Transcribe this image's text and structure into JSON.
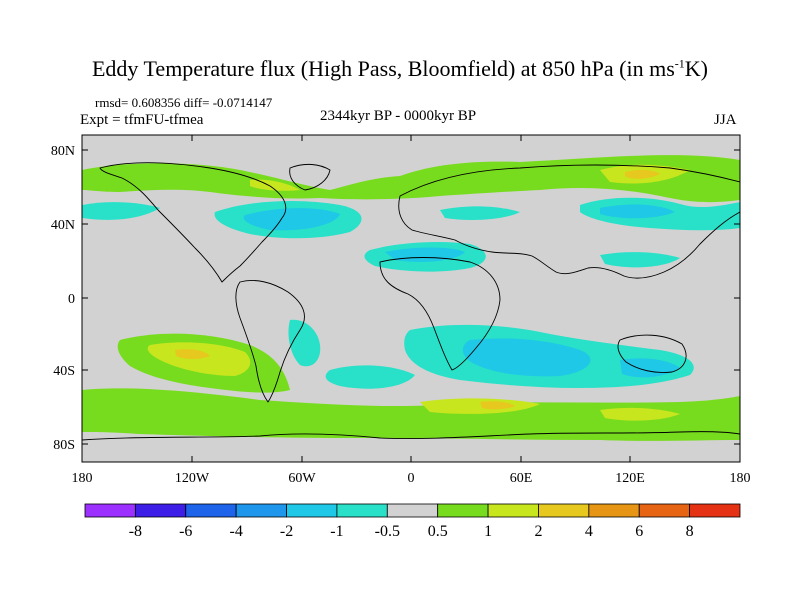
{
  "header": {
    "title_main": "Eddy Temperature flux (High Pass, Bloomfield) at 850 hPa (in ms",
    "title_sup": "-1",
    "title_end": "K)",
    "stats": "rmsd= 0.608356 diff= -0.0714147",
    "experiment": "Expt = tfmFU-tfmea",
    "period": "2344kyr BP - 0000kyr BP",
    "season": "JJA"
  },
  "axes": {
    "lat_labels": [
      "80N",
      "40N",
      "0",
      "40S",
      "80S"
    ],
    "lon_labels": [
      "180",
      "120W",
      "60W",
      "0",
      "60E",
      "120E",
      "180"
    ]
  },
  "colorbar": {
    "colors": [
      "#9b30ff",
      "#3c1ee6",
      "#1e64eb",
      "#1e96eb",
      "#1ec8e6",
      "#28e1c8",
      "#d2d2d2",
      "#78dc1e",
      "#c8e61e",
      "#e6c81e",
      "#e69614",
      "#e66414",
      "#e63214"
    ],
    "labels": [
      "-8",
      "-6",
      "-4",
      "-2",
      "-1",
      "-0.5",
      "0.5",
      "1",
      "2",
      "4",
      "6",
      "8"
    ]
  },
  "map_colors": {
    "background": "#d2d2d2",
    "cyan": "#28e1c8",
    "light_blue": "#1ec8e6",
    "blue": "#1e96eb",
    "green": "#78dc1e",
    "yellow_green": "#c8e61e",
    "yellow": "#e6c81e",
    "coast": "#000000"
  }
}
